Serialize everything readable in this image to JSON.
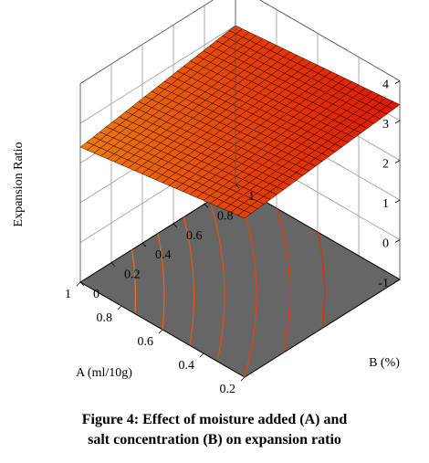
{
  "chart_data": {
    "type": "surface3d",
    "zlabel": "Expansion Ratio",
    "xlabel": "A (ml/10g)",
    "ylabel": "B (%)",
    "x_ticks": [
      "0.2",
      "0.4",
      "0.6",
      "0.8",
      "1"
    ],
    "y_ticks": [
      "0",
      "0.2",
      "0.4",
      "0.6",
      "0.8",
      "1"
    ],
    "z_ticks": [
      "-1",
      "0",
      "1",
      "2",
      "3",
      "4"
    ],
    "xlim": [
      0.2,
      1
    ],
    "ylim": [
      0,
      1
    ],
    "zlim": [
      -1,
      4
    ],
    "surface_corners": [
      {
        "a": 0.2,
        "b": 0,
        "z": 3.0
      },
      {
        "a": 1,
        "b": 0,
        "z": 2.4
      },
      {
        "a": 0.2,
        "b": 1,
        "z": 3.4
      },
      {
        "a": 1,
        "b": 1,
        "z": 3.0
      }
    ],
    "contour_levels": [
      2.6,
      2.7,
      2.8,
      2.9,
      3.0,
      3.1,
      3.2
    ],
    "colors": {
      "surface_high": "#e01800",
      "surface_low": "#f07a10",
      "floor": "#666666",
      "contour_high": "#e01800",
      "contour_low": "#f08020",
      "grid": "#9a9a9a"
    }
  },
  "caption": {
    "line1": "Figure 4: Effect of moisture added (A) and",
    "line2": "salt concentration (B) on expansion ratio"
  }
}
